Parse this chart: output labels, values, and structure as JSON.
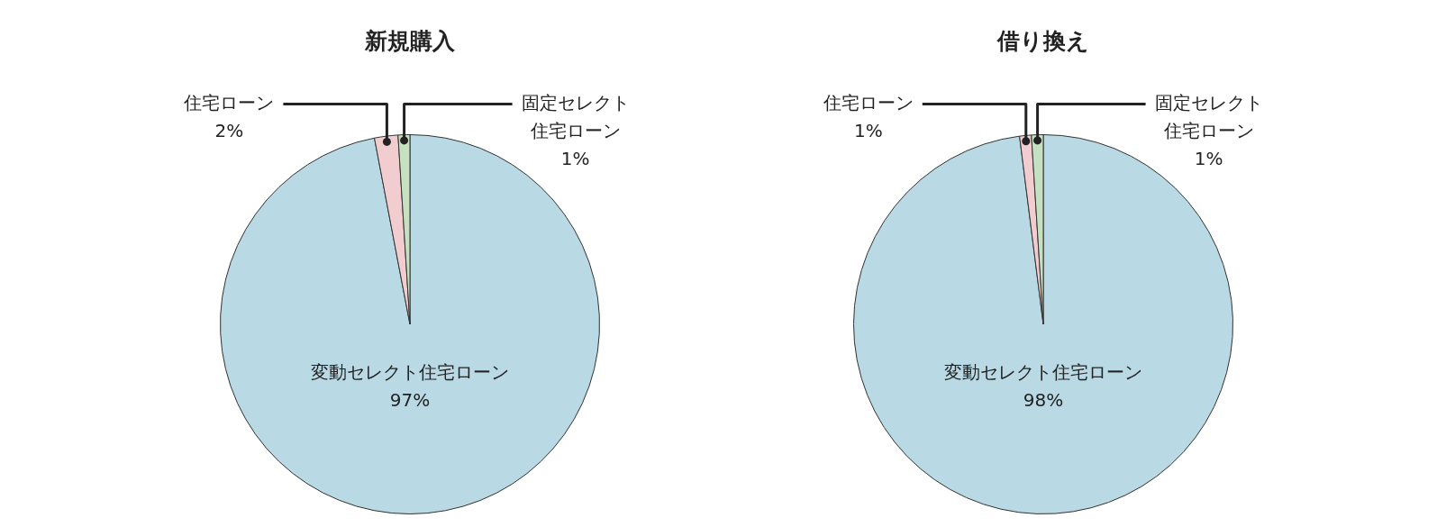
{
  "chart_data": [
    {
      "type": "pie",
      "title": "新規購入",
      "categories": [
        "変動セレクト住宅ローン",
        "住宅ローン",
        "固定セレクト住宅ローン"
      ],
      "values": [
        97,
        2,
        1
      ],
      "value_labels": [
        "97%",
        "2%",
        "1%"
      ],
      "colors": [
        "#b9d9e5",
        "#f1cdd0",
        "#c5e1c1"
      ],
      "legend": false
    },
    {
      "type": "pie",
      "title": "借り換え",
      "categories": [
        "変動セレクト住宅ローン",
        "住宅ローン",
        "固定セレクト住宅ローン"
      ],
      "values": [
        98,
        1,
        1
      ],
      "value_labels": [
        "98%",
        "1%",
        "1%"
      ],
      "colors": [
        "#b9d9e5",
        "#f1cdd0",
        "#c5e1c1"
      ],
      "legend": false
    }
  ]
}
